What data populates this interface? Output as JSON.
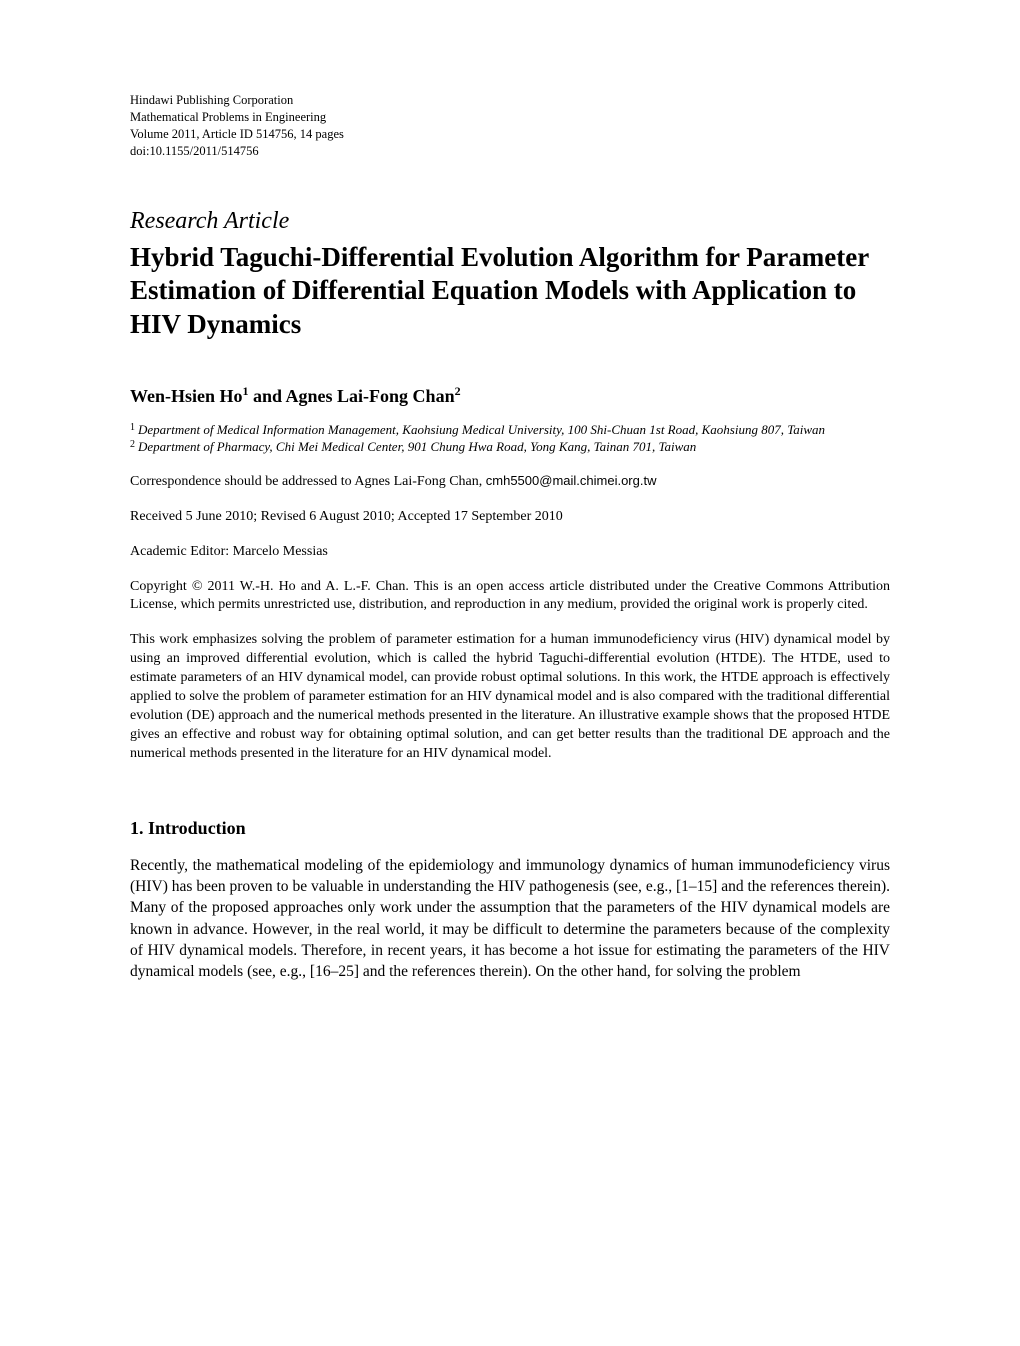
{
  "pub": {
    "publisher": "Hindawi Publishing Corporation",
    "journal": "Mathematical Problems in Engineering",
    "volume": "Volume 2011, Article ID 514756, 14 pages",
    "doi": "doi:10.1155/2011/514756"
  },
  "article_type": "Research Article",
  "title": "Hybrid Taguchi-Differential Evolution Algorithm for Parameter Estimation of Differential Equation Models with Application to HIV Dynamics",
  "authors_html": "Wen-Hsien Ho<sup>1</sup> and Agnes Lai-Fong Chan<sup>2</sup>",
  "affiliations": [
    {
      "num": "1",
      "text": "Department of Medical Information Management, Kaohsiung Medical University, 100 Shi-Chuan 1st Road, Kaohsiung 807, Taiwan"
    },
    {
      "num": "2",
      "text": "Department of Pharmacy, Chi Mei Medical Center, 901 Chung Hwa Road, Yong Kang, Tainan 701, Taiwan"
    }
  ],
  "correspondence_prefix": "Correspondence should be addressed to Agnes Lai-Fong Chan, ",
  "correspondence_email": "cmh5500@mail.chimei.org.tw",
  "received": "Received 5 June 2010; Revised 6 August 2010; Accepted 17 September 2010",
  "editor": "Academic Editor: Marcelo Messias",
  "copyright": "Copyright © 2011 W.-H. Ho and A. L.-F. Chan. This is an open access article distributed under the Creative Commons Attribution License, which permits unrestricted use, distribution, and reproduction in any medium, provided the original work is properly cited.",
  "abstract": "This work emphasizes solving the problem of parameter estimation for a human immunodeficiency virus (HIV) dynamical model by using an improved differential evolution, which is called the hybrid Taguchi-differential evolution (HTDE). The HTDE, used to estimate parameters of an HIV dynamical model, can provide robust optimal solutions. In this work, the HTDE approach is effectively applied to solve the problem of parameter estimation for an HIV dynamical model and is also compared with the traditional differential evolution (DE) approach and the numerical methods presented in the literature. An illustrative example shows that the proposed HTDE gives an effective and robust way for obtaining optimal solution, and can get better results than the traditional DE approach and the numerical methods presented in the literature for an HIV dynamical model.",
  "section1_heading": "1. Introduction",
  "section1_body": "Recently, the mathematical modeling of the epidemiology and immunology dynamics of human immunodeficiency virus (HIV) has been proven to be valuable in understanding the HIV pathogenesis (see, e.g., [1–15] and the references therein). Many of the proposed approaches only work under the assumption that the parameters of the HIV dynamical models are known in advance. However, in the real world, it may be difficult to determine the parameters because of the complexity of HIV dynamical models. Therefore, in recent years, it has become a hot issue for estimating the parameters of the HIV dynamical models (see, e.g., [16–25] and the references therein). On the other hand, for solving the problem"
}
